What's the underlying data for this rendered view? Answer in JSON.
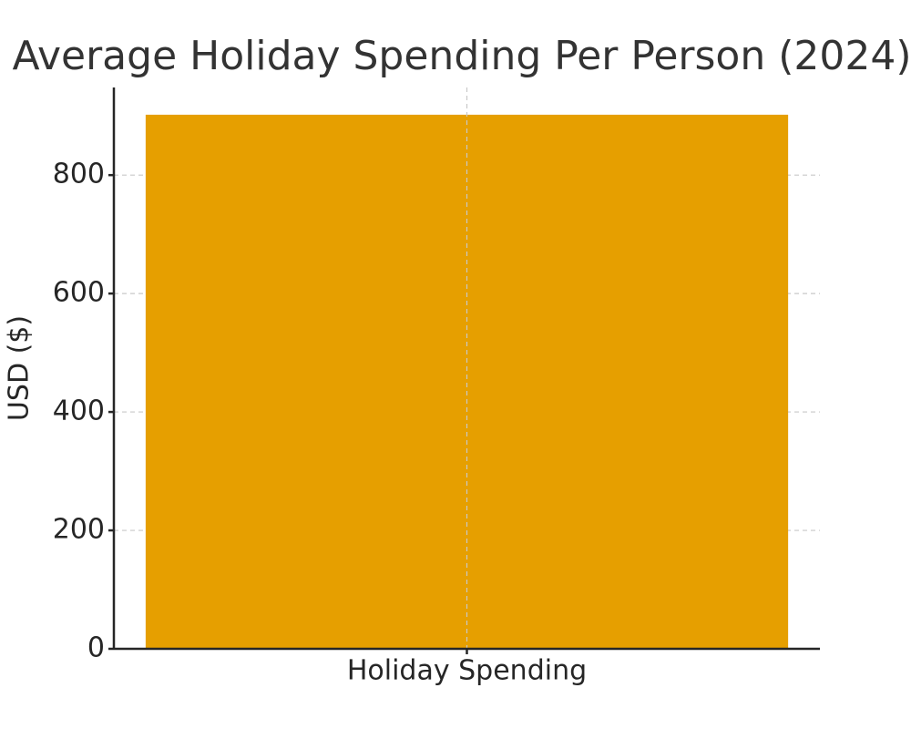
{
  "chart_data": {
    "type": "bar",
    "title": "Average Holiday Spending Per Person (2024)",
    "y_label": "USD ($)",
    "categories": [
      "Holiday Spending"
    ],
    "values": [
      902
    ],
    "color": "#e69f00",
    "ylim": [
      0,
      948
    ],
    "yticks": [
      0,
      200,
      400,
      600,
      800
    ],
    "grid": true
  }
}
